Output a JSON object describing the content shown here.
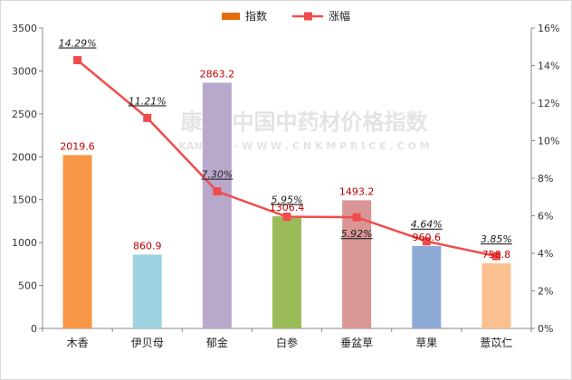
{
  "watermark": {
    "line1": "康美·中国中药材价格指数",
    "line2": "KANGMEI · W W W . C N K M P R I C E . C O M"
  },
  "chart_data": {
    "type": "bar",
    "categories": [
      "木香",
      "伊贝母",
      "郁金",
      "白参",
      "垂盆草",
      "草果",
      "薏苡仁"
    ],
    "series": [
      {
        "name": "指数",
        "type": "bar",
        "axis": "left",
        "values": [
          2019.6,
          860.9,
          2863.2,
          1306.4,
          1493.2,
          960.6,
          758.8
        ],
        "labels": [
          "2019.6",
          "860.9",
          "2863.2",
          "1306.4",
          "1493.2",
          "960.6",
          "758.8"
        ],
        "colors": [
          "#f79646",
          "#9dd3e0",
          "#b8a8cc",
          "#9bbb59",
          "#d99694",
          "#8eaad6",
          "#fac090"
        ]
      },
      {
        "name": "涨幅",
        "type": "line",
        "axis": "right",
        "values": [
          14.29,
          11.21,
          7.3,
          5.95,
          5.92,
          4.64,
          3.85
        ],
        "labels": [
          "14.29%",
          "11.21%",
          "7.30%",
          "5.95%",
          "5.92%",
          "4.64%",
          "3.85%"
        ],
        "color": "#f14c4c"
      }
    ],
    "y_left": {
      "min": 0,
      "max": 3500,
      "ticks": [
        "0",
        "500",
        "1000",
        "1500",
        "2000",
        "2500",
        "3000",
        "3500"
      ]
    },
    "y_right": {
      "min": 0,
      "max": 16,
      "ticks": [
        "0%",
        "2%",
        "4%",
        "6%",
        "8%",
        "10%",
        "12%",
        "14%",
        "16%"
      ]
    },
    "legend": {
      "position": "top-center",
      "items": [
        "指数",
        "涨幅"
      ],
      "bar_color": "#e46c0a",
      "line_color": "#f14c4c"
    },
    "grid": false
  }
}
